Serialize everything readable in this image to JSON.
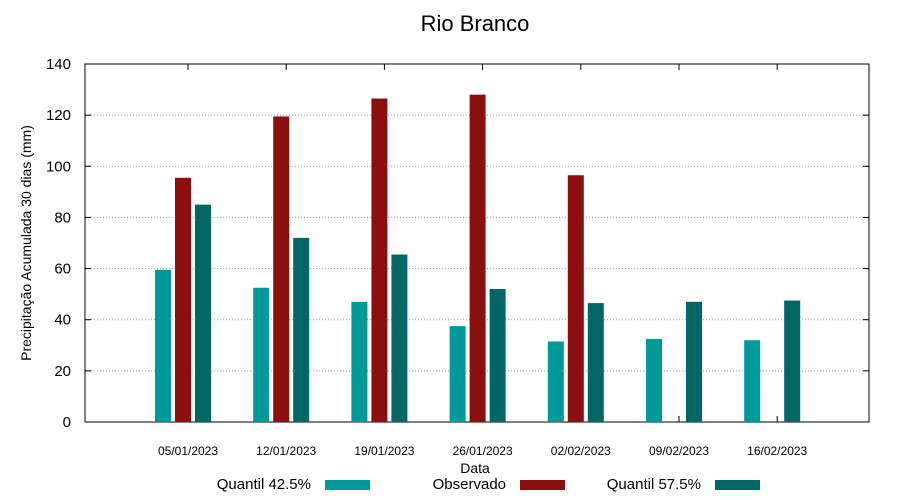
{
  "chart_data": {
    "type": "bar",
    "title": "Rio Branco",
    "xlabel": "Data",
    "ylabel": "Precipitação Acumulada 30 dias (mm)",
    "ylim": [
      0,
      140
    ],
    "yticks": [
      0,
      20,
      40,
      60,
      80,
      100,
      120,
      140
    ],
    "grid": true,
    "legend_position": "bottom",
    "categories": [
      "05/01/2023",
      "12/01/2023",
      "19/01/2023",
      "26/01/2023",
      "02/02/2023",
      "09/02/2023",
      "16/02/2023"
    ],
    "series": [
      {
        "name": "Quantil 42.5%",
        "color": "#009999",
        "values": [
          59.5,
          52.5,
          47,
          37.5,
          31.5,
          32.5,
          32
        ]
      },
      {
        "name": "Observado",
        "color": "#8b0f0f",
        "values": [
          95.5,
          119.5,
          126.5,
          128,
          96.5,
          null,
          null
        ]
      },
      {
        "name": "Quantil 57.5%",
        "color": "#006666",
        "values": [
          85,
          72,
          65.5,
          52,
          46.5,
          47,
          47.5
        ]
      }
    ]
  }
}
